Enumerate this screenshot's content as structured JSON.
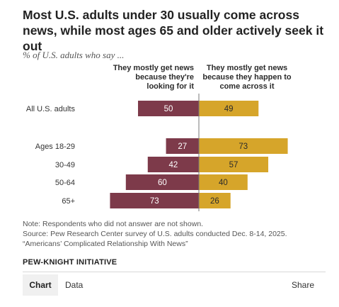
{
  "title": "Most U.S. adults under 30 usually come across news, while most ages 65 and older actively seek it out",
  "subtitle": "% of U.S. adults who say ...",
  "chart_data": {
    "type": "bar",
    "orientation": "horizontal-diverging",
    "categories": [
      "All U.S. adults",
      "Ages 18-29",
      "30-49",
      "50-64",
      "65+"
    ],
    "series": [
      {
        "name": "They mostly get news because they're looking for it",
        "values": [
          50,
          27,
          42,
          60,
          73
        ],
        "color": "#7d3a4a",
        "side": "left"
      },
      {
        "name": "They mostly get news because they happen to come across it",
        "values": [
          49,
          73,
          57,
          40,
          26
        ],
        "color": "#d6a52a",
        "side": "right"
      }
    ],
    "data_labels": true,
    "legend_placement": "top, above bars",
    "grid": false
  },
  "legend": {
    "left": "They mostly get news because they're looking for it",
    "right": "They mostly get news because they happen to come across it"
  },
  "notes": {
    "note": "Note: Respondents who did not answer are not shown.",
    "source": "Source: Pew Research Center survey of U.S. adults conducted Dec. 8-14, 2025.",
    "report": "“Americans’ Complicated Relationship With News”"
  },
  "brand": "PEW-KNIGHT INITIATIVE",
  "tabs": {
    "chart": "Chart",
    "data": "Data"
  },
  "share_label": "Share",
  "colors": {
    "looking": "#7d3a4a",
    "come_across": "#d6a52a",
    "axis": "#777777"
  }
}
